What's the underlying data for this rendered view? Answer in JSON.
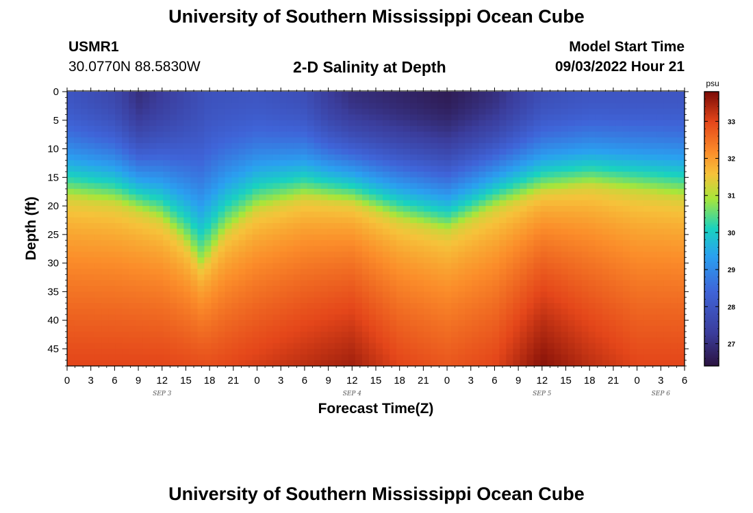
{
  "page": {
    "title": "University of Southern Mississippi Ocean Cube",
    "footer_title": "University of Southern Mississippi Ocean Cube",
    "station_id": "USMR1",
    "coordinates": "30.0770N  88.5830W",
    "plot_name": "2-D Salinity at Depth",
    "start_label": "Model Start Time",
    "start_value": "09/03/2022 Hour 21"
  },
  "chart_data": {
    "type": "heatmap",
    "title": "2-D Salinity at Depth",
    "xlabel": "Forecast Time(Z)",
    "ylabel": "Depth (ft)",
    "x_tick_labels": [
      "0",
      "3",
      "6",
      "9",
      "12",
      "15",
      "18",
      "21",
      "0",
      "3",
      "6",
      "9",
      "12",
      "15",
      "18",
      "21",
      "0",
      "3",
      "6",
      "9",
      "12",
      "15",
      "18",
      "21",
      "0",
      "3",
      "6"
    ],
    "y_ticks": [
      0,
      5,
      10,
      15,
      20,
      25,
      30,
      35,
      40,
      45
    ],
    "ylim": [
      0,
      48
    ],
    "x_hours_range": [
      0,
      78
    ],
    "date_labels": [
      {
        "text": "SEP 3",
        "hour": 12
      },
      {
        "text": "SEP 4",
        "hour": 36
      },
      {
        "text": "SEP 5",
        "hour": 60
      },
      {
        "text": "SEP 6",
        "hour": 75
      }
    ],
    "colorbar": {
      "unit": "psu",
      "ticks": [
        27,
        28,
        29,
        30,
        31,
        32,
        33
      ],
      "range": [
        26.4,
        33.8
      ]
    },
    "isohaline_31psu_depth_ft": {
      "hours": [
        0,
        6,
        12,
        15,
        17,
        20,
        24,
        30,
        36,
        42,
        48,
        54,
        60,
        66,
        72,
        78
      ],
      "depths": [
        18,
        19,
        22,
        26,
        30,
        24,
        20,
        18,
        19,
        22,
        24,
        20,
        17,
        16,
        17,
        18
      ]
    },
    "surface_salinity_psu": {
      "hours": [
        0,
        6,
        9,
        12,
        18,
        24,
        30,
        33,
        36,
        42,
        48,
        54,
        60,
        66,
        72,
        78
      ],
      "values": [
        28.0,
        27.6,
        27.0,
        27.3,
        27.9,
        28.0,
        27.8,
        27.3,
        27.0,
        26.8,
        26.6,
        27.0,
        27.8,
        28.0,
        28.0,
        28.0
      ]
    },
    "bottom_salinity_psu": {
      "hours": [
        0,
        12,
        18,
        24,
        30,
        36,
        42,
        48,
        54,
        60,
        66,
        72,
        78
      ],
      "values": [
        33.0,
        33.0,
        32.9,
        33.1,
        33.3,
        33.5,
        33.0,
        32.8,
        33.0,
        33.7,
        33.3,
        33.0,
        33.0
      ]
    }
  }
}
